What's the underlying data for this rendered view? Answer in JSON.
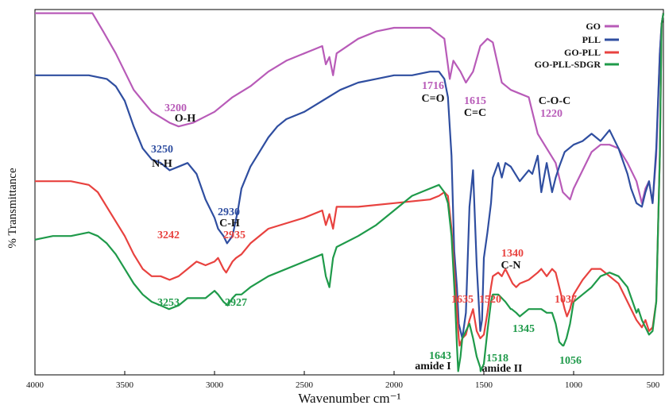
{
  "chart_data": {
    "type": "line",
    "title": "",
    "xlabel": "Wavenumber cm⁻¹",
    "ylabel": "% Transmittance",
    "xlim": [
      4000,
      500
    ],
    "x_reversed": true,
    "ylim": [
      0,
      100
    ],
    "y_ticks_shown": false,
    "x_ticks": [
      4000,
      3500,
      3000,
      2500,
      2000,
      1500,
      1000,
      500
    ],
    "x_tick_labels": [
      "4000",
      "3500",
      "3000",
      "2500",
      "2000",
      "1500",
      "1000",
      "500"
    ],
    "grid": false,
    "legend": "top-right",
    "series": [
      {
        "name": "GO",
        "color": "#b85bb8",
        "x": [
          4000,
          3900,
          3800,
          3720,
          3680,
          3620,
          3550,
          3450,
          3350,
          3250,
          3200,
          3120,
          3000,
          2900,
          2800,
          2700,
          2600,
          2500,
          2450,
          2400,
          2380,
          2360,
          2340,
          2320,
          2200,
          2100,
          2000,
          1900,
          1800,
          1720,
          1690,
          1670,
          1630,
          1600,
          1560,
          1520,
          1480,
          1450,
          1400,
          1350,
          1300,
          1250,
          1230,
          1200,
          1150,
          1100,
          1060,
          1040,
          1020,
          1000,
          950,
          900,
          850,
          800,
          750,
          700,
          650,
          620,
          600,
          580,
          560,
          540,
          520,
          510,
          500
        ],
        "y": [
          99,
          99,
          99,
          99,
          99,
          94,
          88,
          78,
          72,
          69,
          68,
          69,
          72,
          76,
          79,
          83,
          86,
          88,
          89,
          90,
          85,
          87,
          82,
          88,
          92,
          94,
          95,
          95,
          95,
          92,
          81,
          86,
          83,
          80,
          83,
          90,
          92,
          91,
          80,
          78,
          77,
          76,
          72,
          66,
          62,
          58,
          50,
          49,
          48,
          51,
          56,
          61,
          63,
          63,
          62,
          58,
          53,
          47,
          51,
          53,
          47,
          60,
          88,
          96,
          99
        ]
      },
      {
        "name": "PLL",
        "color": "#2f4ea0",
        "x": [
          4000,
          3900,
          3800,
          3700,
          3600,
          3550,
          3500,
          3450,
          3400,
          3350,
          3300,
          3250,
          3200,
          3150,
          3100,
          3050,
          3000,
          2980,
          2950,
          2930,
          2900,
          2870,
          2850,
          2800,
          2750,
          2700,
          2650,
          2600,
          2500,
          2400,
          2300,
          2200,
          2100,
          2000,
          1900,
          1800,
          1750,
          1720,
          1700,
          1680,
          1665,
          1650,
          1640,
          1620,
          1600,
          1580,
          1560,
          1540,
          1520,
          1510,
          1500,
          1480,
          1460,
          1450,
          1420,
          1400,
          1380,
          1350,
          1300,
          1250,
          1230,
          1200,
          1180,
          1150,
          1120,
          1100,
          1080,
          1050,
          1000,
          950,
          900,
          850,
          800,
          750,
          700,
          680,
          650,
          620,
          600,
          580,
          560,
          540,
          520,
          510,
          500
        ],
        "y": [
          82,
          82,
          82,
          82,
          81,
          79,
          75,
          68,
          62,
          59,
          58,
          56,
          57,
          58,
          55,
          48,
          43,
          40,
          38,
          36,
          38,
          45,
          51,
          57,
          61,
          65,
          68,
          70,
          72,
          75,
          78,
          80,
          81,
          82,
          82,
          83,
          83,
          81,
          76,
          60,
          34,
          24,
          14,
          10,
          17,
          46,
          56,
          30,
          12,
          15,
          32,
          39,
          47,
          54,
          58,
          54,
          58,
          57,
          53,
          56,
          55,
          60,
          50,
          58,
          50,
          54,
          57,
          61,
          63,
          64,
          66,
          64,
          67,
          62,
          55,
          51,
          47,
          46,
          50,
          53,
          47,
          62,
          88,
          96,
          99
        ]
      },
      {
        "name": "GO-PLL",
        "color": "#e8423f",
        "x": [
          4000,
          3800,
          3700,
          3650,
          3600,
          3550,
          3500,
          3450,
          3400,
          3350,
          3300,
          3250,
          3200,
          3150,
          3100,
          3050,
          3000,
          2980,
          2950,
          2935,
          2900,
          2880,
          2850,
          2800,
          2700,
          2500,
          2400,
          2380,
          2360,
          2340,
          2320,
          2200,
          2000,
          1800,
          1750,
          1720,
          1700,
          1680,
          1660,
          1640,
          1635,
          1620,
          1600,
          1580,
          1560,
          1540,
          1520,
          1500,
          1480,
          1460,
          1450,
          1420,
          1400,
          1380,
          1350,
          1340,
          1320,
          1300,
          1250,
          1200,
          1180,
          1150,
          1120,
          1100,
          1080,
          1050,
          1037,
          1020,
          1000,
          950,
          900,
          850,
          800,
          750,
          700,
          650,
          620,
          600,
          580,
          560,
          540,
          520,
          510,
          500
        ],
        "y": [
          53,
          53,
          52,
          50,
          46,
          42,
          38,
          33,
          29,
          27,
          27,
          26,
          27,
          29,
          31,
          30,
          31,
          32,
          29,
          28,
          31,
          32,
          33,
          36,
          40,
          43,
          45,
          41,
          44,
          40,
          46,
          46,
          47,
          48,
          49,
          50,
          49,
          40,
          25,
          10,
          8,
          10,
          11,
          15,
          18,
          12,
          10,
          11,
          17,
          24,
          27,
          28,
          27,
          29,
          26,
          25,
          24,
          25,
          26,
          28,
          29,
          27,
          29,
          28,
          24,
          18,
          16,
          18,
          22,
          26,
          29,
          29,
          27,
          25,
          20,
          15,
          13,
          15,
          12,
          13,
          20,
          60,
          96,
          99
        ]
      },
      {
        "name": "GO-PLL-SDGR",
        "color": "#1f9a4a",
        "x": [
          4000,
          3900,
          3800,
          3700,
          3650,
          3600,
          3550,
          3500,
          3450,
          3400,
          3350,
          3300,
          3253,
          3200,
          3150,
          3100,
          3050,
          3000,
          2980,
          2950,
          2927,
          2900,
          2880,
          2850,
          2800,
          2700,
          2500,
          2400,
          2380,
          2360,
          2340,
          2320,
          2200,
          2100,
          2000,
          1900,
          1800,
          1750,
          1720,
          1700,
          1680,
          1660,
          1650,
          1643,
          1630,
          1620,
          1600,
          1580,
          1560,
          1540,
          1520,
          1518,
          1500,
          1480,
          1460,
          1450,
          1420,
          1400,
          1380,
          1350,
          1345,
          1320,
          1300,
          1250,
          1200,
          1180,
          1150,
          1120,
          1100,
          1080,
          1060,
          1056,
          1040,
          1020,
          1000,
          950,
          900,
          850,
          800,
          750,
          700,
          650,
          640,
          620,
          600,
          580,
          560,
          540,
          520,
          510,
          500
        ],
        "y": [
          37,
          38,
          38,
          39,
          38,
          36,
          33,
          29,
          25,
          22,
          20,
          19,
          18,
          19,
          21,
          21,
          21,
          23,
          22,
          20,
          19,
          21,
          22,
          22,
          24,
          27,
          31,
          33,
          27,
          24,
          32,
          35,
          38,
          41,
          45,
          49,
          51,
          52,
          50,
          47,
          38,
          20,
          8,
          1,
          5,
          10,
          12,
          14,
          10,
          5,
          2,
          1,
          3,
          12,
          20,
          22,
          22,
          21,
          20,
          18,
          18,
          17,
          16,
          18,
          18,
          18,
          17,
          17,
          14,
          9,
          8,
          8,
          10,
          14,
          20,
          22,
          24,
          27,
          28,
          27,
          24,
          17,
          18,
          15,
          13,
          11,
          12,
          20,
          60,
          96,
          99
        ]
      }
    ],
    "legend_entries": [
      "GO",
      "PLL",
      "GO-PLL",
      "GO-PLL-SDGR"
    ],
    "annotations": [
      {
        "text": "3200",
        "x": 3200,
        "color": "#b85bb8"
      },
      {
        "text": "O-H",
        "x": 3200,
        "color": "#111111"
      },
      {
        "text": "3250",
        "x": 3250,
        "color": "#2f4ea0"
      },
      {
        "text": "N-H",
        "x": 3250,
        "color": "#111111"
      },
      {
        "text": "2930",
        "x": 2930,
        "color": "#2f4ea0"
      },
      {
        "text": "C-H",
        "x": 2930,
        "color": "#111111"
      },
      {
        "text": "3242",
        "x": 3242,
        "color": "#e8423f"
      },
      {
        "text": "2935",
        "x": 2935,
        "color": "#e8423f"
      },
      {
        "text": "3253",
        "x": 3253,
        "color": "#1f9a4a"
      },
      {
        "text": "2927",
        "x": 2927,
        "color": "#1f9a4a"
      },
      {
        "text": "1716",
        "x": 1716,
        "color": "#b85bb8"
      },
      {
        "text": "C=O",
        "x": 1716,
        "color": "#111111"
      },
      {
        "text": "1615",
        "x": 1615,
        "color": "#b85bb8"
      },
      {
        "text": "C=C",
        "x": 1615,
        "color": "#111111"
      },
      {
        "text": "C-O-C",
        "x": 1220,
        "color": "#111111"
      },
      {
        "text": "1220",
        "x": 1220,
        "color": "#b85bb8"
      },
      {
        "text": "1340",
        "x": 1340,
        "color": "#e8423f"
      },
      {
        "text": "C-N",
        "x": 1340,
        "color": "#111111"
      },
      {
        "text": "1635",
        "x": 1635,
        "color": "#e8423f"
      },
      {
        "text": "1520",
        "x": 1520,
        "color": "#e8423f"
      },
      {
        "text": "1037",
        "x": 1037,
        "color": "#e8423f"
      },
      {
        "text": "1345",
        "x": 1345,
        "color": "#1f9a4a"
      },
      {
        "text": "1643",
        "x": 1643,
        "color": "#1f9a4a"
      },
      {
        "text": "amide I",
        "x": 1643,
        "color": "#111111"
      },
      {
        "text": "1518",
        "x": 1518,
        "color": "#1f9a4a"
      },
      {
        "text": "amide II",
        "x": 1518,
        "color": "#111111"
      },
      {
        "text": "1056",
        "x": 1056,
        "color": "#1f9a4a"
      }
    ]
  }
}
